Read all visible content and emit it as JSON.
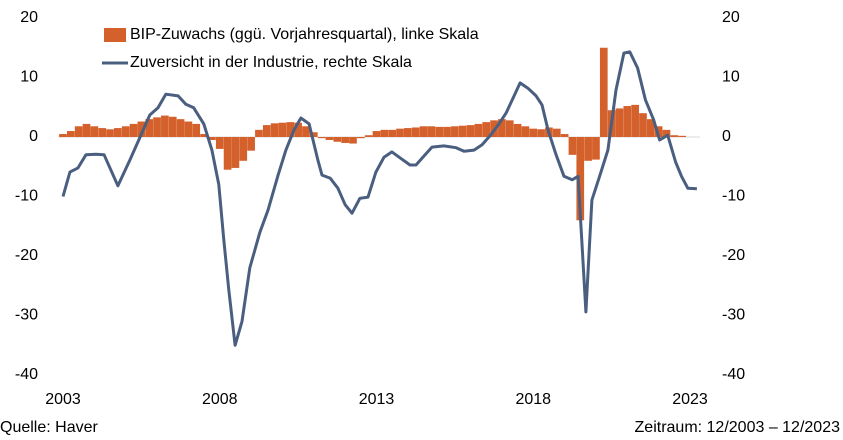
{
  "chart_data": {
    "type": "bar-line",
    "legend": "upper left",
    "footer_left": "Quelle: Haver",
    "footer_right": "Zeitraum: 12/2003 – 12/2023",
    "xlim": [
      2003,
      2023
    ],
    "xticks": [
      2003,
      2008,
      2013,
      2018,
      2023
    ],
    "ylim": [
      -40,
      20
    ],
    "yticks": [
      -40,
      -30,
      -20,
      -10,
      0,
      10,
      20
    ],
    "y2lim": [
      -40,
      20
    ],
    "y2ticks": [
      -40,
      -30,
      -20,
      -10,
      0,
      10,
      20
    ],
    "series": [
      {
        "name": "BIP-Zuwachs (ggü. Vorjahresquartal), linke Skala",
        "type": "bar",
        "color": "#d4602b",
        "x": [
          2003,
          2003.25,
          2003.5,
          2003.75,
          2004,
          2004.25,
          2004.5,
          2004.75,
          2005,
          2005.25,
          2005.5,
          2005.75,
          2006,
          2006.25,
          2006.5,
          2006.75,
          2007,
          2007.25,
          2007.5,
          2007.75,
          2008,
          2008.25,
          2008.5,
          2008.75,
          2009,
          2009.25,
          2009.5,
          2009.75,
          2010,
          2010.25,
          2010.5,
          2010.75,
          2011,
          2011.25,
          2011.5,
          2011.75,
          2012,
          2012.25,
          2012.5,
          2012.75,
          2013,
          2013.25,
          2013.5,
          2013.75,
          2014,
          2014.25,
          2014.5,
          2014.75,
          2015,
          2015.25,
          2015.5,
          2015.75,
          2016,
          2016.25,
          2016.5,
          2016.75,
          2017,
          2017.25,
          2017.5,
          2017.75,
          2018,
          2018.25,
          2018.5,
          2018.75,
          2019,
          2019.25,
          2019.5,
          2019.75,
          2020,
          2020.25,
          2020.5,
          2020.75,
          2021,
          2021.25,
          2021.5,
          2021.75,
          2022,
          2022.25,
          2022.5,
          2022.75
        ],
        "values": [
          0.5,
          1,
          1.8,
          2.2,
          1.8,
          1.5,
          1.3,
          1.5,
          1.8,
          2.2,
          2.6,
          3,
          3.3,
          3.6,
          3.4,
          3,
          2.6,
          2.2,
          0.5,
          -0.5,
          -2,
          -5.5,
          -5.2,
          -4,
          -2.3,
          1.2,
          2,
          2.3,
          2.4,
          2.5,
          2.4,
          1.8,
          0.8,
          -0.2,
          -0.5,
          -0.8,
          -1,
          -1.1,
          -0.2,
          0.3,
          1,
          1.2,
          1.2,
          1.4,
          1.5,
          1.6,
          1.8,
          1.8,
          1.7,
          1.7,
          1.8,
          1.9,
          2,
          2.2,
          2.5,
          2.8,
          3,
          2.8,
          2.2,
          1.8,
          1.4,
          1.3,
          1.6,
          1.4,
          0.5,
          -3,
          -14,
          -4,
          -3.8,
          15,
          4.5,
          4.8,
          5.2,
          5.4,
          4,
          3,
          1.8,
          1.2,
          0.3,
          0.2
        ]
      },
      {
        "name": "Zuversicht in der Industrie, rechte Skala",
        "type": "line",
        "axis": "y2",
        "color": "#4a5f80",
        "x": [
          2003,
          2003.22,
          2003.48,
          2003.73,
          2004.05,
          2004.31,
          2004.75,
          2005.13,
          2005.46,
          2005.77,
          2006.03,
          2006.28,
          2006.67,
          2006.92,
          2007.17,
          2007.49,
          2007.75,
          2007.97,
          2008.13,
          2008.29,
          2008.49,
          2008.71,
          2008.96,
          2009.28,
          2009.54,
          2009.86,
          2010.11,
          2010.37,
          2010.59,
          2010.85,
          2011.13,
          2011.26,
          2011.52,
          2011.77,
          2012,
          2012.22,
          2012.47,
          2012.73,
          2012.98,
          2013.24,
          2013.49,
          2013.75,
          2014.07,
          2014.26,
          2014.55,
          2014.77,
          2015.15,
          2015.54,
          2015.79,
          2016.11,
          2016.37,
          2016.62,
          2016.88,
          2017.13,
          2017.39,
          2017.58,
          2017.83,
          2018.09,
          2018.28,
          2018.47,
          2018.73,
          2018.98,
          2019.24,
          2019.43,
          2019.68,
          2019.87,
          2020.13,
          2020.38,
          2020.64,
          2020.89,
          2021.08,
          2021.33,
          2021.58,
          2021.84,
          2022.03,
          2022.29,
          2022.54,
          2022.73,
          2022.93,
          2023.22
        ],
        "values": [
          -10,
          -5.9,
          -5.2,
          -3,
          -2.9,
          -3,
          -8.2,
          -3.9,
          0,
          3.7,
          4.9,
          7.2,
          6.9,
          5.5,
          4.9,
          2.2,
          -2.2,
          -8,
          -17.3,
          -25.7,
          -35,
          -31,
          -22,
          -16,
          -12.3,
          -6.4,
          -2.2,
          1.2,
          3.2,
          2.2,
          -3.9,
          -6.4,
          -6.9,
          -8.6,
          -11.4,
          -12.8,
          -10.3,
          -10.1,
          -5.9,
          -3.4,
          -2.5,
          -3.5,
          -4.7,
          -4.7,
          -3,
          -1.7,
          -1.5,
          -1.8,
          -2.4,
          -2.2,
          -1.3,
          0.2,
          2,
          4,
          6.9,
          9.1,
          8.2,
          6.9,
          5.4,
          1.2,
          -3,
          -6.6,
          -7.2,
          -6.6,
          -29.4,
          -10.6,
          -6.4,
          -2.2,
          7.9,
          14.1,
          14.3,
          11.6,
          6.2,
          2.9,
          -0.5,
          0.3,
          -4.2,
          -6.6,
          -8.6,
          -8.7
        ]
      }
    ]
  }
}
